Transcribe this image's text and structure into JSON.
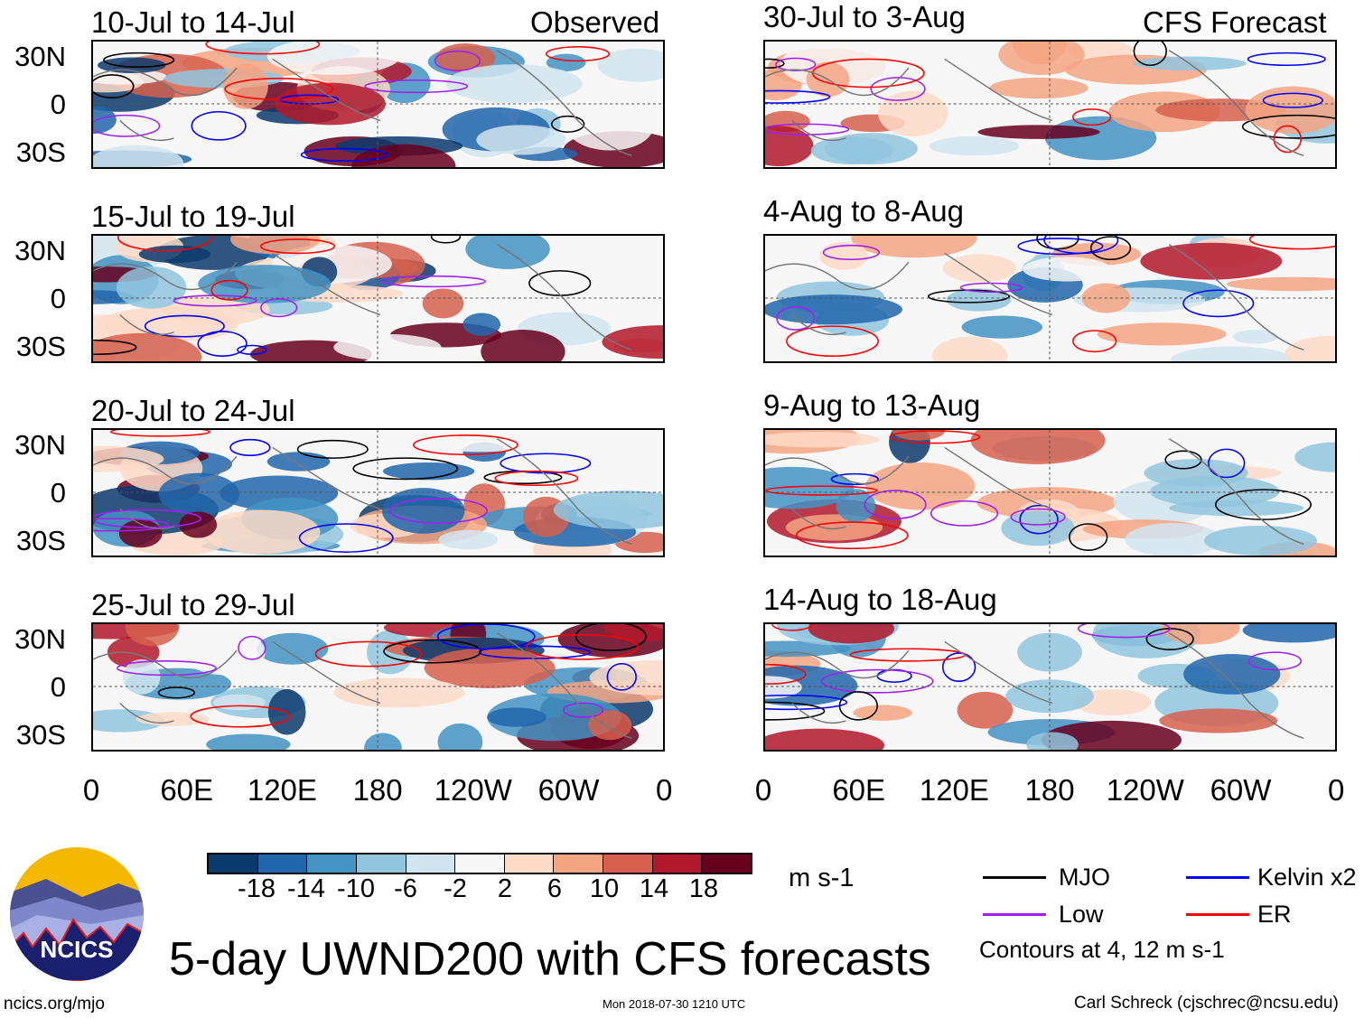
{
  "figure": {
    "title": "5-day UWND200 with CFS forecasts",
    "left_header": "Observed",
    "right_header": "CFS Forecast",
    "website": "ncics.org/mjo",
    "timestamp": "Mon 2018-07-30 1210 UTC",
    "author": "Carl Schreck (cjschrec@ncsu.edu)",
    "logo_text": "NCICS"
  },
  "observed_panels": [
    {
      "title": "10-Jul to 14-Jul"
    },
    {
      "title": "15-Jul to 19-Jul"
    },
    {
      "title": "20-Jul to 24-Jul"
    },
    {
      "title": "25-Jul to 29-Jul"
    }
  ],
  "forecast_panels": [
    {
      "title": "30-Jul to 3-Aug"
    },
    {
      "title": "4-Aug to 8-Aug"
    },
    {
      "title": "9-Aug to 13-Aug"
    },
    {
      "title": "14-Aug to 18-Aug"
    }
  ],
  "axes": {
    "y_ticks": [
      "30N",
      "0",
      "30S"
    ],
    "x_ticks": [
      "0",
      "60E",
      "120E",
      "180",
      "120W",
      "60W",
      "0"
    ]
  },
  "colorbar": {
    "units": "m s-1",
    "labels": [
      "-18",
      "-14",
      "-10",
      "-6",
      "-2",
      "2",
      "6",
      "10",
      "14",
      "18"
    ],
    "colors": [
      "#0a3a6c",
      "#2166ac",
      "#4393c3",
      "#92c5de",
      "#d1e5f0",
      "#f7f7f7",
      "#fddbc7",
      "#f4a582",
      "#d6604d",
      "#b2182b",
      "#67001f"
    ]
  },
  "legend": {
    "items": [
      {
        "label": "MJO",
        "color": "#000000"
      },
      {
        "label": "Kelvin x2",
        "color": "#0000ff"
      },
      {
        "label": "Low",
        "color": "#a020f0"
      },
      {
        "label": "ER",
        "color": "#ff0000"
      }
    ],
    "note": "Contours at 4, 12 m s-1"
  }
}
